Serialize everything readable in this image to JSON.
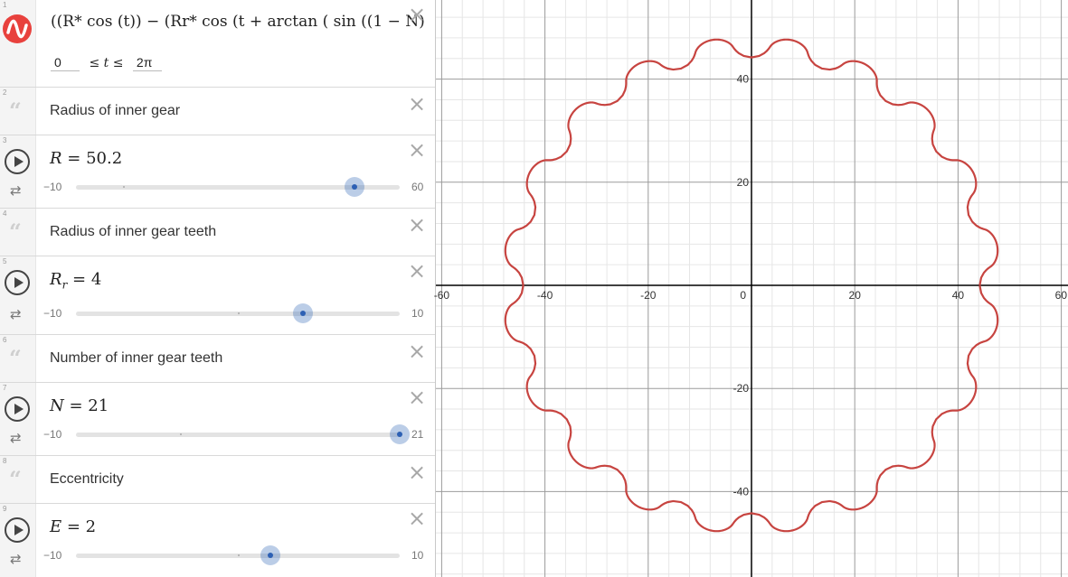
{
  "expressions": [
    {
      "index": "1",
      "type": "parametric",
      "formula_latex_preview": "((R* cos (t)) − (Rr* cos (t + arctan ( sin ((1 − N)",
      "range": {
        "min": "0",
        "le1": "≤",
        "var": "t",
        "le2": "≤",
        "max": "2π"
      }
    },
    {
      "index": "2",
      "type": "note",
      "text": "Radius of inner gear"
    },
    {
      "index": "3",
      "type": "slider",
      "var": "R",
      "value": "50.2",
      "min": "−10",
      "max": "60",
      "fraction": 0.86
    },
    {
      "index": "4",
      "type": "note",
      "text": "Radius of inner gear teeth"
    },
    {
      "index": "5",
      "type": "slider",
      "var": "R",
      "sub": "r",
      "value": "4",
      "min": "−10",
      "max": "10",
      "fraction": 0.7
    },
    {
      "index": "6",
      "type": "note",
      "text": "Number of inner gear teeth"
    },
    {
      "index": "7",
      "type": "slider",
      "var": "N",
      "value": "21",
      "min": "−10",
      "max": "21",
      "fraction": 1.0
    },
    {
      "index": "8",
      "type": "note",
      "text": "Eccentricity"
    },
    {
      "index": "9",
      "type": "slider",
      "var": "E",
      "value": "2",
      "min": "−10",
      "max": "10",
      "fraction": 0.6
    }
  ],
  "graph": {
    "x_ticks": [
      "-60",
      "-40",
      "-20",
      "0",
      "20",
      "40",
      "60"
    ],
    "y_ticks": [
      "40",
      "20",
      "-20",
      "-40"
    ],
    "curve_color": "#c74440",
    "axis_color": "#000000",
    "grid_major_color": "#9b9b9b",
    "grid_minor_color": "#e6e6e6"
  },
  "icons": {
    "close": "×",
    "quote": "“",
    "loop": "⇄"
  }
}
